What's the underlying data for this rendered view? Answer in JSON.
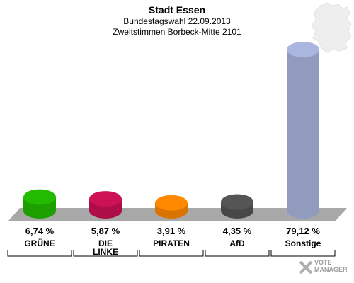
{
  "header": {
    "title": "Stadt Essen",
    "subtitle": "Bundestagswahl 22.09.2013",
    "subtitle2": "Zweitstimmen Borbeck-Mitte 2101"
  },
  "watermark": {
    "line1": "VOTE",
    "line2": "MANAGER"
  },
  "chart_data": {
    "type": "bar",
    "title": "Stadt Essen",
    "categories": [
      "GRÜNE",
      "DIE LINKE",
      "PIRATEN",
      "AfD",
      "Sonstige"
    ],
    "category_labels": [
      [
        "GRÜNE"
      ],
      [
        "DIE",
        "LINKE"
      ],
      [
        "PIRATEN"
      ],
      [
        "AfD"
      ],
      [
        "Sonstige"
      ]
    ],
    "values": [
      6.74,
      5.87,
      3.91,
      4.35,
      79.12
    ],
    "value_labels": [
      "6,74 %",
      "5,87 %",
      "3,91 %",
      "4,35 %",
      "79,12 %"
    ],
    "colors": [
      "#22bb00",
      "#cc1155",
      "#ff8800",
      "#555555",
      "#aab6e0"
    ],
    "unit": "%",
    "ylim": [
      0,
      79.12
    ],
    "grid": false,
    "legend": "none"
  }
}
